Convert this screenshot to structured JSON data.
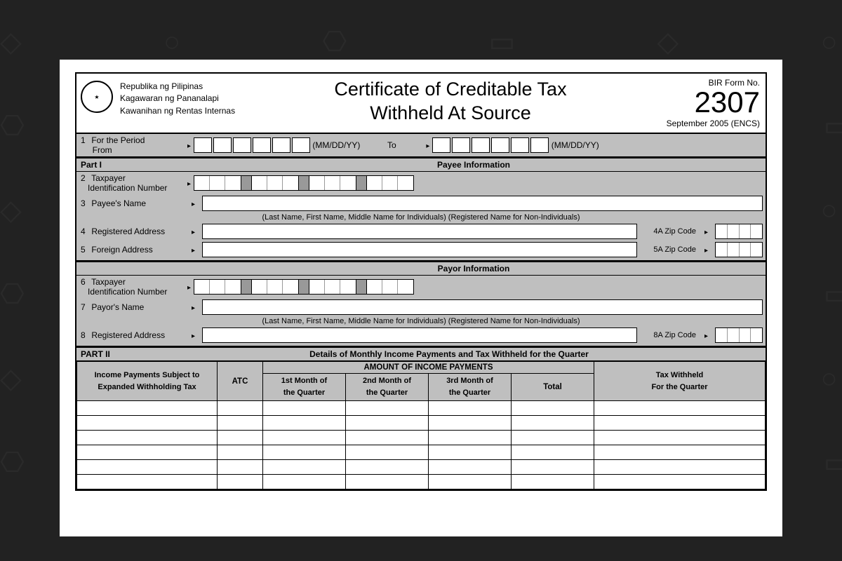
{
  "background": {
    "color": "#222222",
    "pattern_opacity": 0.08
  },
  "page": {
    "bg": "#ffffff"
  },
  "header": {
    "gov": {
      "line1": "Republika ng Pilipinas",
      "line2": "Kagawaran ng Pananalapi",
      "line3": "Kawanihan ng Rentas Internas"
    },
    "title_l1": "Certificate of Creditable Tax",
    "title_l2": "Withheld At Source",
    "formno_label": "BIR Form No.",
    "formno": "2307",
    "revision": "September 2005  (ENCS)"
  },
  "period": {
    "row_num": "1",
    "label": "For the Period",
    "from": "From",
    "to": "To",
    "fmt": "(MM/DD/YY)"
  },
  "part1": {
    "label": "Part I",
    "title": "Payee   Information",
    "f2_num": "2",
    "f2_label": "Taxpayer",
    "f2_label2": "Identification Number",
    "f3_num": "3",
    "f3_label": "Payee's Name",
    "helper": "(Last Name, First Name, Middle Name for Individuals) (Registered Name for Non-Individuals)",
    "f4_num": "4",
    "f4_label": "Registered Address",
    "f4a": "4A  Zip Code",
    "f5_num": "5",
    "f5_label": "Foreign Address",
    "f5a": "5A  Zip Code"
  },
  "payor": {
    "title": "Payor   Information",
    "f6_num": "6",
    "f6_label": "Taxpayer",
    "f6_label2": "Identification Number",
    "f7_num": "7",
    "f7_label": "Payor's Name",
    "helper": "(Last Name, First Name, Middle Name for Individuals) (Registered Name for Non-Individuals)",
    "f8_num": "8",
    "f8_label": "Registered Address",
    "f8a": "8A  Zip Code"
  },
  "part2": {
    "label": "PART II",
    "title": "Details of Monthly Income Payments and Tax Withheld for the Quarter",
    "col_desc_l1": "Income Payments Subject to",
    "col_desc_l2": "Expanded Withholding Tax",
    "col_atc": "ATC",
    "col_amount_header": "AMOUNT OF INCOME PAYMENTS",
    "col_m1_l1": "1st Month of",
    "col_m1_l2": "the Quarter",
    "col_m2_l1": "2nd Month of",
    "col_m2_l2": "the Quarter",
    "col_m3_l1": "3rd Month of",
    "col_m3_l2": "the Quarter",
    "col_total": "Total",
    "col_tw_l1": "Tax Withheld",
    "col_tw_l2": "For the Quarter",
    "blank_rows": 6
  },
  "colors": {
    "shade": "#bfbfbf",
    "border": "#000000"
  }
}
